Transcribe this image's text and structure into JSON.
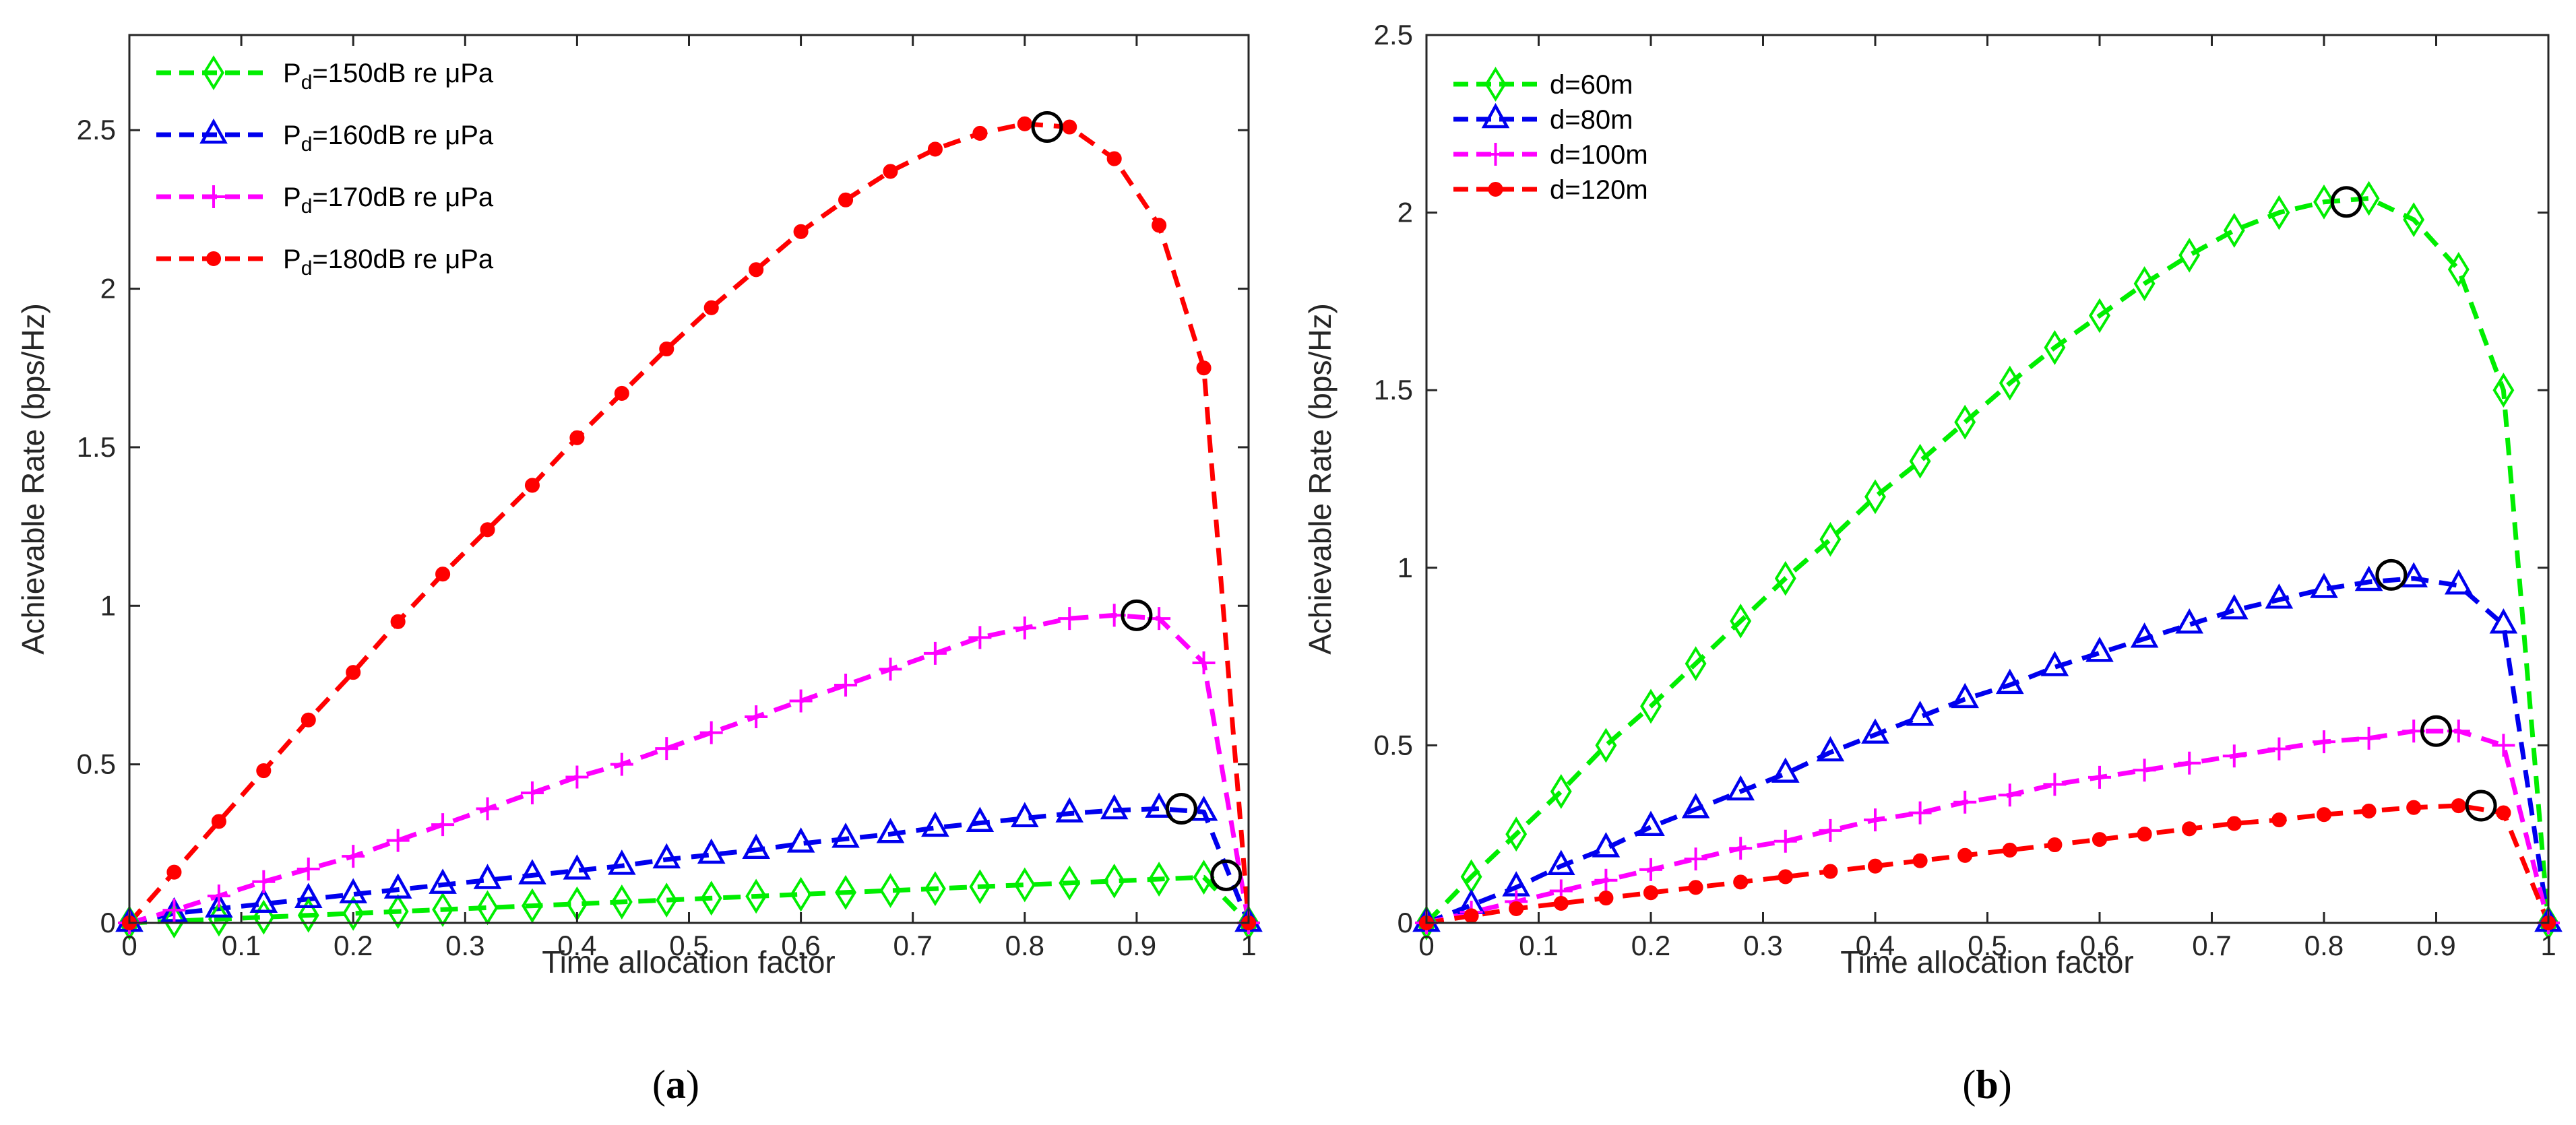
{
  "chart_data": [
    {
      "panel": "a",
      "panel_label_text": "a",
      "type": "line",
      "xlabel": "Time allocation factor",
      "ylabel": "Achievable Rate (bps/Hz)",
      "xlim": [
        0,
        1
      ],
      "ylim": [
        0,
        2.8
      ],
      "xticks": [
        "0",
        "0.1",
        "0.2",
        "0.3",
        "0.4",
        "0.5",
        "0.6",
        "0.7",
        "0.8",
        "0.9",
        "1"
      ],
      "yticks": [
        "0",
        "0.5",
        "1",
        "1.5",
        "2",
        "2.5"
      ],
      "x": [
        0,
        0.04,
        0.08,
        0.12,
        0.16,
        0.2,
        0.24,
        0.28,
        0.32,
        0.36,
        0.4,
        0.44,
        0.48,
        0.52,
        0.56,
        0.6,
        0.64,
        0.68,
        0.72,
        0.76,
        0.8,
        0.84,
        0.88,
        0.92,
        0.96,
        1
      ],
      "legend_position": "top-left",
      "series": [
        {
          "name": "P_d=150dB re μPa",
          "legend_main": "P",
          "legend_sub": "d",
          "legend_rest": "=150dB re μPa",
          "color": "#00ee00",
          "marker": "diamond",
          "values": [
            0,
            0.006,
            0.012,
            0.018,
            0.024,
            0.03,
            0.036,
            0.042,
            0.048,
            0.054,
            0.06,
            0.066,
            0.072,
            0.078,
            0.084,
            0.09,
            0.096,
            0.102,
            0.108,
            0.114,
            0.12,
            0.126,
            0.132,
            0.138,
            0.144,
            0
          ]
        },
        {
          "name": "P_d=160dB re μPa",
          "legend_main": "P",
          "legend_sub": "d",
          "legend_rest": "=160dB re μPa",
          "color": "#0000ee",
          "marker": "triangle",
          "values": [
            0,
            0.03,
            0.045,
            0.06,
            0.075,
            0.09,
            0.105,
            0.12,
            0.135,
            0.15,
            0.165,
            0.18,
            0.2,
            0.215,
            0.23,
            0.25,
            0.265,
            0.28,
            0.3,
            0.315,
            0.33,
            0.345,
            0.355,
            0.36,
            0.35,
            0
          ]
        },
        {
          "name": "P_d=170dB re μPa",
          "legend_main": "P",
          "legend_sub": "d",
          "legend_rest": "=170dB re μPa",
          "color": "#ff00ff",
          "marker": "plus",
          "values": [
            0,
            0.04,
            0.085,
            0.13,
            0.17,
            0.21,
            0.26,
            0.31,
            0.36,
            0.41,
            0.46,
            0.5,
            0.55,
            0.6,
            0.65,
            0.7,
            0.75,
            0.8,
            0.85,
            0.9,
            0.93,
            0.96,
            0.97,
            0.96,
            0.82,
            0
          ]
        },
        {
          "name": "P_d=180dB re μPa",
          "legend_main": "P",
          "legend_sub": "d",
          "legend_rest": "=180dB re μPa",
          "color": "#ff0000",
          "marker": "dot",
          "values": [
            0,
            0.16,
            0.32,
            0.48,
            0.64,
            0.79,
            0.95,
            1.1,
            1.24,
            1.38,
            1.53,
            1.67,
            1.81,
            1.94,
            2.06,
            2.18,
            2.28,
            2.37,
            2.44,
            2.49,
            2.52,
            2.51,
            2.41,
            2.2,
            1.75,
            0
          ]
        }
      ],
      "optimum_markers": [
        {
          "x": 0.82,
          "y": 2.51
        },
        {
          "x": 0.9,
          "y": 0.97
        },
        {
          "x": 0.94,
          "y": 0.36
        },
        {
          "x": 0.98,
          "y": 0.15
        }
      ]
    },
    {
      "panel": "b",
      "panel_label_text": "b",
      "type": "line",
      "xlabel": "Time allocation factor",
      "ylabel": "Achievable Rate (bps/Hz)",
      "xlim": [
        0,
        1
      ],
      "ylim": [
        0,
        2.5
      ],
      "xticks": [
        "0",
        "0.1",
        "0.2",
        "0.3",
        "0.4",
        "0.5",
        "0.6",
        "0.7",
        "0.8",
        "0.9",
        "1"
      ],
      "yticks": [
        "0",
        "0.5",
        "1",
        "1.5",
        "2",
        "2.5"
      ],
      "x": [
        0,
        0.04,
        0.08,
        0.12,
        0.16,
        0.2,
        0.24,
        0.28,
        0.32,
        0.36,
        0.4,
        0.44,
        0.48,
        0.52,
        0.56,
        0.6,
        0.64,
        0.68,
        0.72,
        0.76,
        0.8,
        0.84,
        0.88,
        0.92,
        0.96,
        1
      ],
      "legend_position": "top-left",
      "series": [
        {
          "name": "d=60m",
          "legend_main": "d=60m",
          "legend_sub": "",
          "legend_rest": "",
          "color": "#00ee00",
          "marker": "diamond",
          "values": [
            0,
            0.13,
            0.25,
            0.37,
            0.5,
            0.61,
            0.73,
            0.85,
            0.97,
            1.08,
            1.2,
            1.3,
            1.41,
            1.52,
            1.62,
            1.71,
            1.8,
            1.88,
            1.95,
            2.0,
            2.03,
            2.04,
            1.98,
            1.84,
            1.5,
            0
          ]
        },
        {
          "name": "d=80m",
          "legend_main": "d=80m",
          "legend_sub": "",
          "legend_rest": "",
          "color": "#0000ee",
          "marker": "triangle",
          "values": [
            0,
            0.05,
            0.1,
            0.16,
            0.21,
            0.27,
            0.32,
            0.37,
            0.42,
            0.48,
            0.53,
            0.58,
            0.63,
            0.67,
            0.72,
            0.76,
            0.8,
            0.84,
            0.88,
            0.91,
            0.94,
            0.96,
            0.97,
            0.95,
            0.84,
            0
          ]
        },
        {
          "name": "d=100m",
          "legend_main": "d=100m",
          "legend_sub": "",
          "legend_rest": "",
          "color": "#ff00ff",
          "marker": "plus",
          "values": [
            0,
            0.03,
            0.06,
            0.09,
            0.12,
            0.15,
            0.18,
            0.21,
            0.23,
            0.26,
            0.29,
            0.31,
            0.34,
            0.36,
            0.39,
            0.41,
            0.43,
            0.45,
            0.47,
            0.49,
            0.51,
            0.52,
            0.54,
            0.54,
            0.5,
            0
          ]
        },
        {
          "name": "d=120m",
          "legend_main": "d=120m",
          "legend_sub": "",
          "legend_rest": "",
          "color": "#ff0000",
          "marker": "dot",
          "values": [
            0,
            0.02,
            0.04,
            0.055,
            0.07,
            0.085,
            0.1,
            0.115,
            0.13,
            0.145,
            0.16,
            0.175,
            0.19,
            0.205,
            0.22,
            0.235,
            0.25,
            0.265,
            0.28,
            0.29,
            0.305,
            0.315,
            0.325,
            0.33,
            0.31,
            0
          ]
        }
      ],
      "optimum_markers": [
        {
          "x": 0.82,
          "y": 2.03
        },
        {
          "x": 0.86,
          "y": 0.98
        },
        {
          "x": 0.9,
          "y": 0.54
        },
        {
          "x": 0.94,
          "y": 0.33
        }
      ]
    }
  ]
}
